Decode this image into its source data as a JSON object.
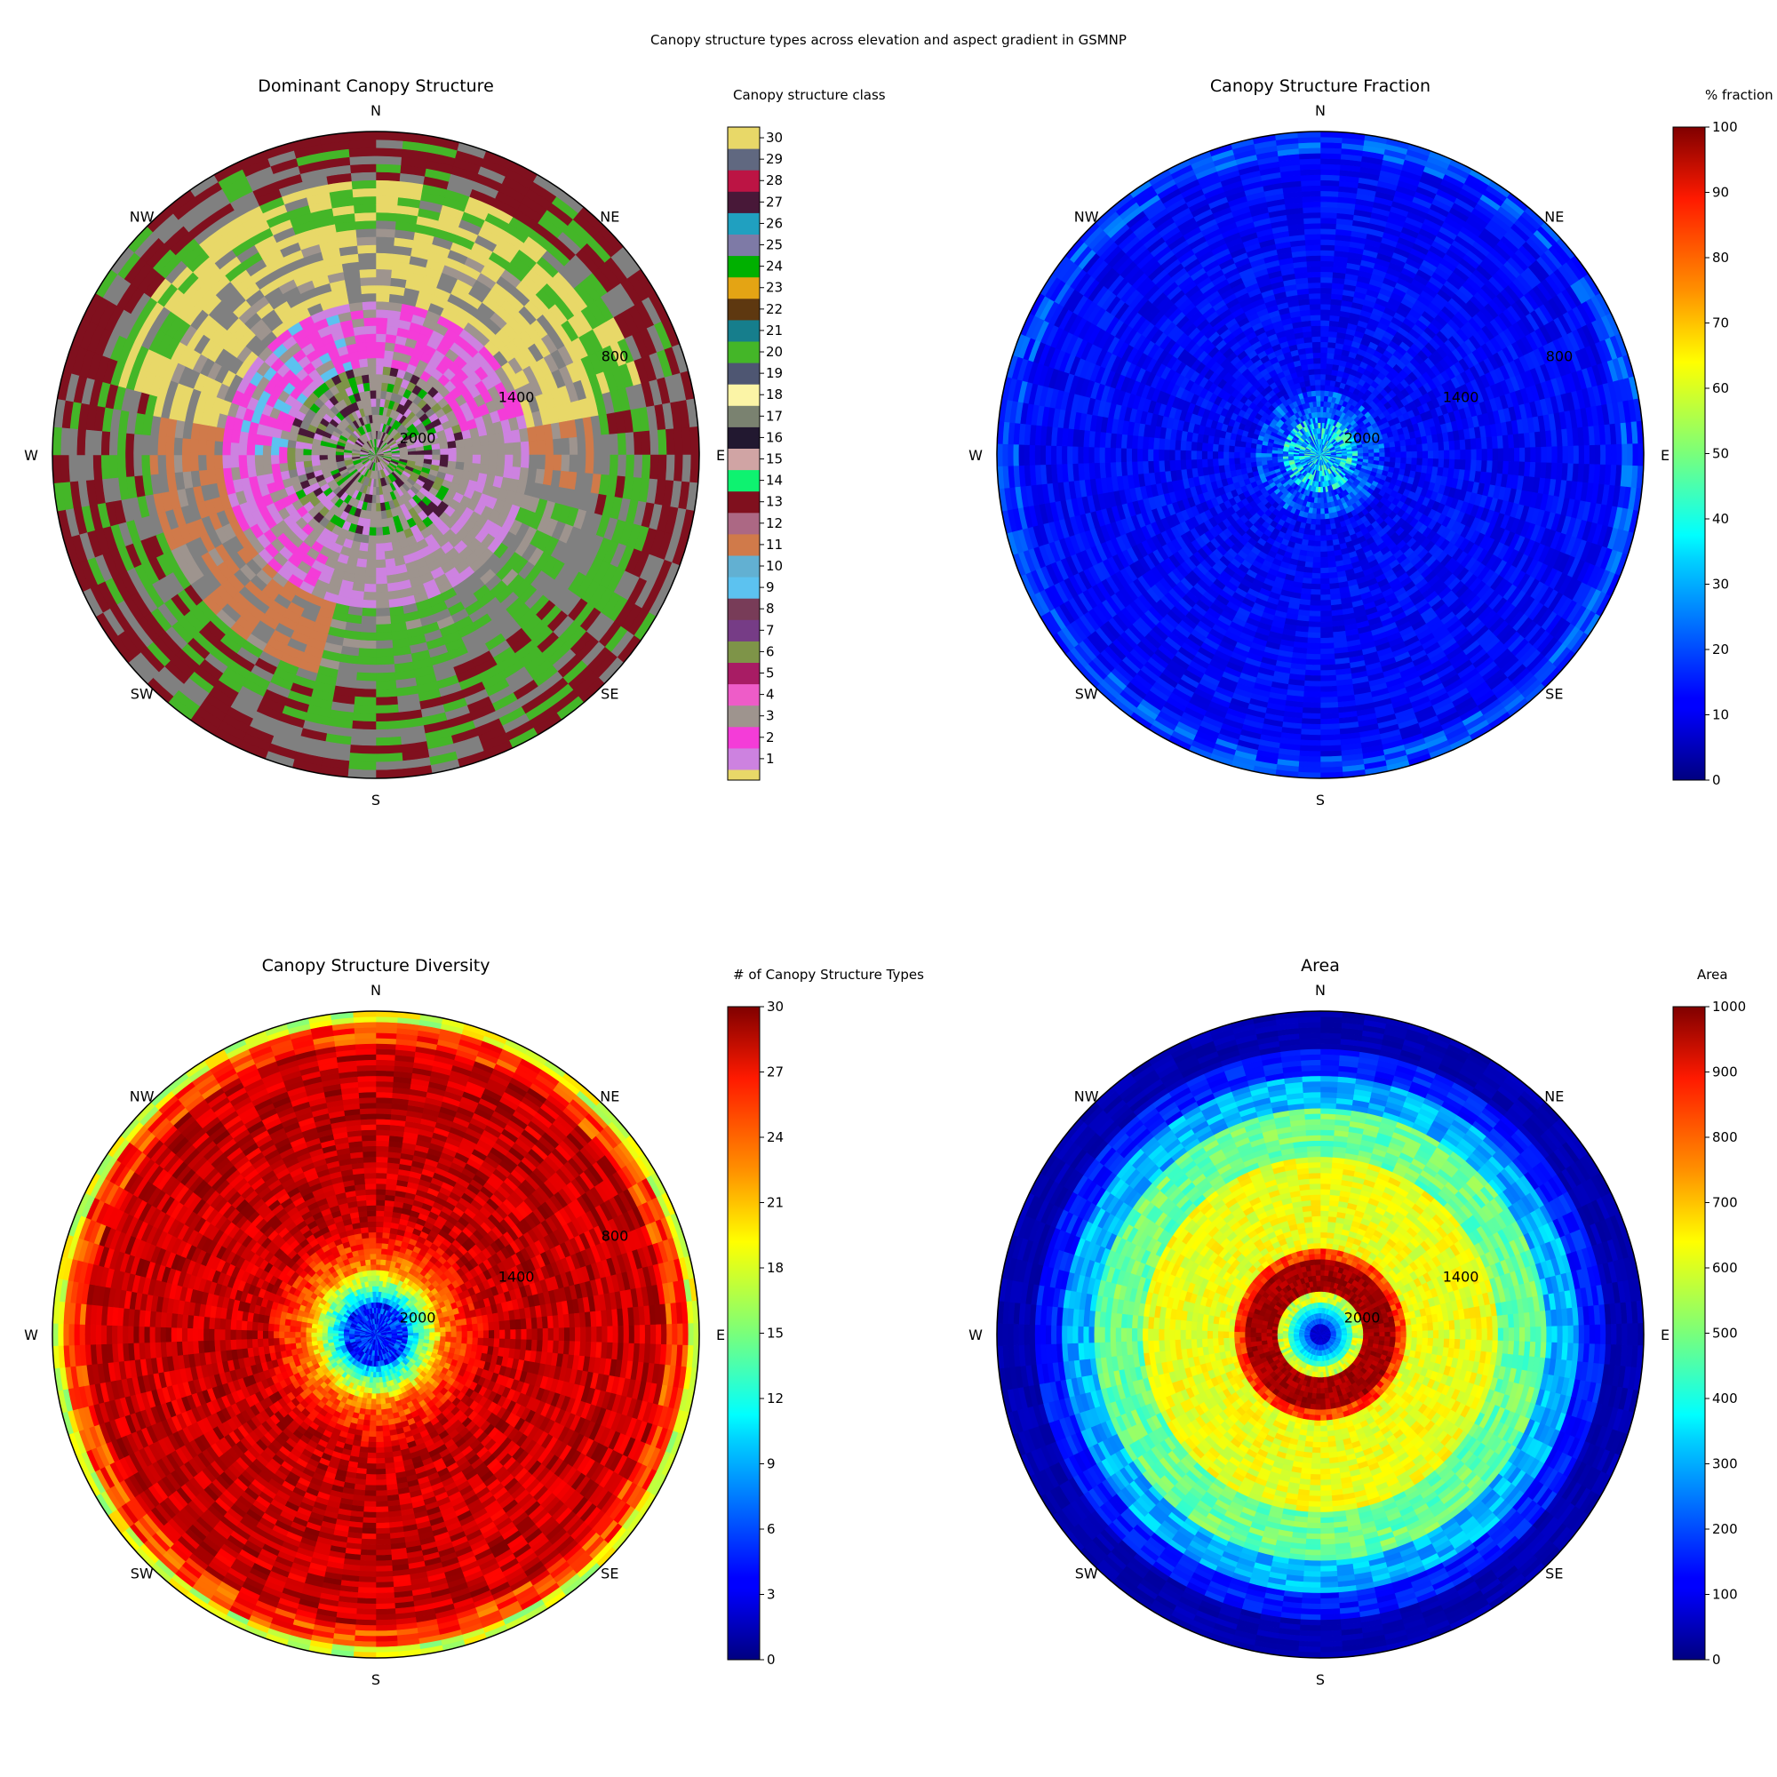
{
  "suptitle": "Canopy structure types across elevation and aspect gradient in GSMNP",
  "directions": [
    "N",
    "NE",
    "E",
    "SE",
    "S",
    "SW",
    "W",
    "NW"
  ],
  "chart_data": [
    {
      "id": "dominant",
      "type": "heatmap",
      "projection": "polar",
      "title": "Dominant Canopy Structure",
      "radial_tick_labels": [
        "800",
        "1400",
        "2000"
      ],
      "radial_axis": "elevation, reversed (center = 2000, rim = lower)",
      "colorbar": {
        "label": "Canopy structure class",
        "kind": "discrete",
        "tick_labels": [
          "1",
          "2",
          "3",
          "4",
          "5",
          "6",
          "7",
          "8",
          "9",
          "10",
          "11",
          "12",
          "13",
          "14",
          "15",
          "16",
          "17",
          "18",
          "19",
          "20",
          "21",
          "22",
          "23",
          "24",
          "25",
          "26",
          "27",
          "28",
          "29",
          "30"
        ],
        "colors": [
          "#e8d868",
          "#cd82e0",
          "#f43cd8",
          "#9e948e",
          "#ee5cc8",
          "#a81c64",
          "#7e9448",
          "#763c86",
          "#783c58",
          "#5cc2f0",
          "#62b0d2",
          "#d07a4a",
          "#ac6884",
          "#80101e",
          "#0ef270",
          "#d0a4a4",
          "#221830",
          "#7a8270",
          "#fbf4a6",
          "#4e5672",
          "#44b628",
          "#167e8c",
          "#5e3810",
          "#e4a414",
          "#00b000",
          "#7e7aa6",
          "#20a0c0",
          "#481838",
          "#bc1444",
          "#606880"
        ]
      },
      "grid_colors": {
        "structure_a": "#808080",
        "structure_b": "#0ef270",
        "structure_c": "#44b628"
      }
    },
    {
      "id": "fraction",
      "type": "heatmap",
      "projection": "polar",
      "title": "Canopy Structure Fraction",
      "radial_tick_labels": [
        "800",
        "1400",
        "2000"
      ],
      "colorbar": {
        "label": "% fraction",
        "colormap": "jet",
        "range": [
          0,
          100
        ],
        "ticks": [
          0,
          10,
          20,
          30,
          40,
          50,
          60,
          70,
          80,
          90,
          100
        ]
      },
      "typical_value_range": [
        5,
        20
      ]
    },
    {
      "id": "diversity",
      "type": "heatmap",
      "projection": "polar",
      "title": "Canopy Structure Diversity",
      "radial_tick_labels": [
        "800",
        "1400",
        "2000"
      ],
      "colorbar": {
        "label": "# of Canopy Structure Types",
        "colormap": "jet",
        "range": [
          0,
          30
        ],
        "ticks": [
          0,
          3,
          6,
          9,
          12,
          15,
          18,
          21,
          24,
          27,
          30
        ]
      },
      "radial_profile": {
        "center": 3,
        "mid": 28,
        "rim": 16
      }
    },
    {
      "id": "area",
      "type": "heatmap",
      "projection": "polar",
      "title": "Area",
      "radial_tick_labels": [
        "1400",
        "2000"
      ],
      "colorbar": {
        "label": "Area",
        "colormap": "jet",
        "range": [
          0,
          1000
        ],
        "ticks": [
          0,
          100,
          200,
          300,
          400,
          500,
          600,
          700,
          800,
          900,
          1000
        ]
      },
      "radial_profile": {
        "center": 120,
        "ring": 1000,
        "mid": 600,
        "rim": 40
      }
    }
  ]
}
